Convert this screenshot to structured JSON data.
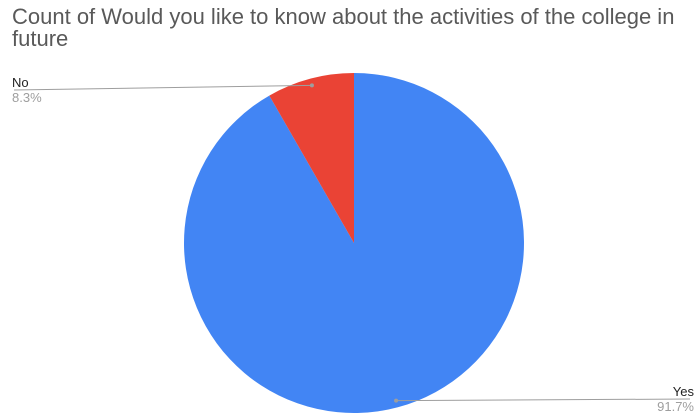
{
  "chart_data": {
    "type": "pie",
    "title": "Count of Would you like to know about the activities of the college in future",
    "slices": [
      {
        "label": "Yes",
        "value": 91.7,
        "percent_label": "91.7%",
        "color": "#4285f4"
      },
      {
        "label": "No",
        "value": 8.3,
        "percent_label": "8.3%",
        "color": "#ea4335"
      }
    ],
    "legend": "none",
    "label_lines_color": "#9e9e9e"
  }
}
